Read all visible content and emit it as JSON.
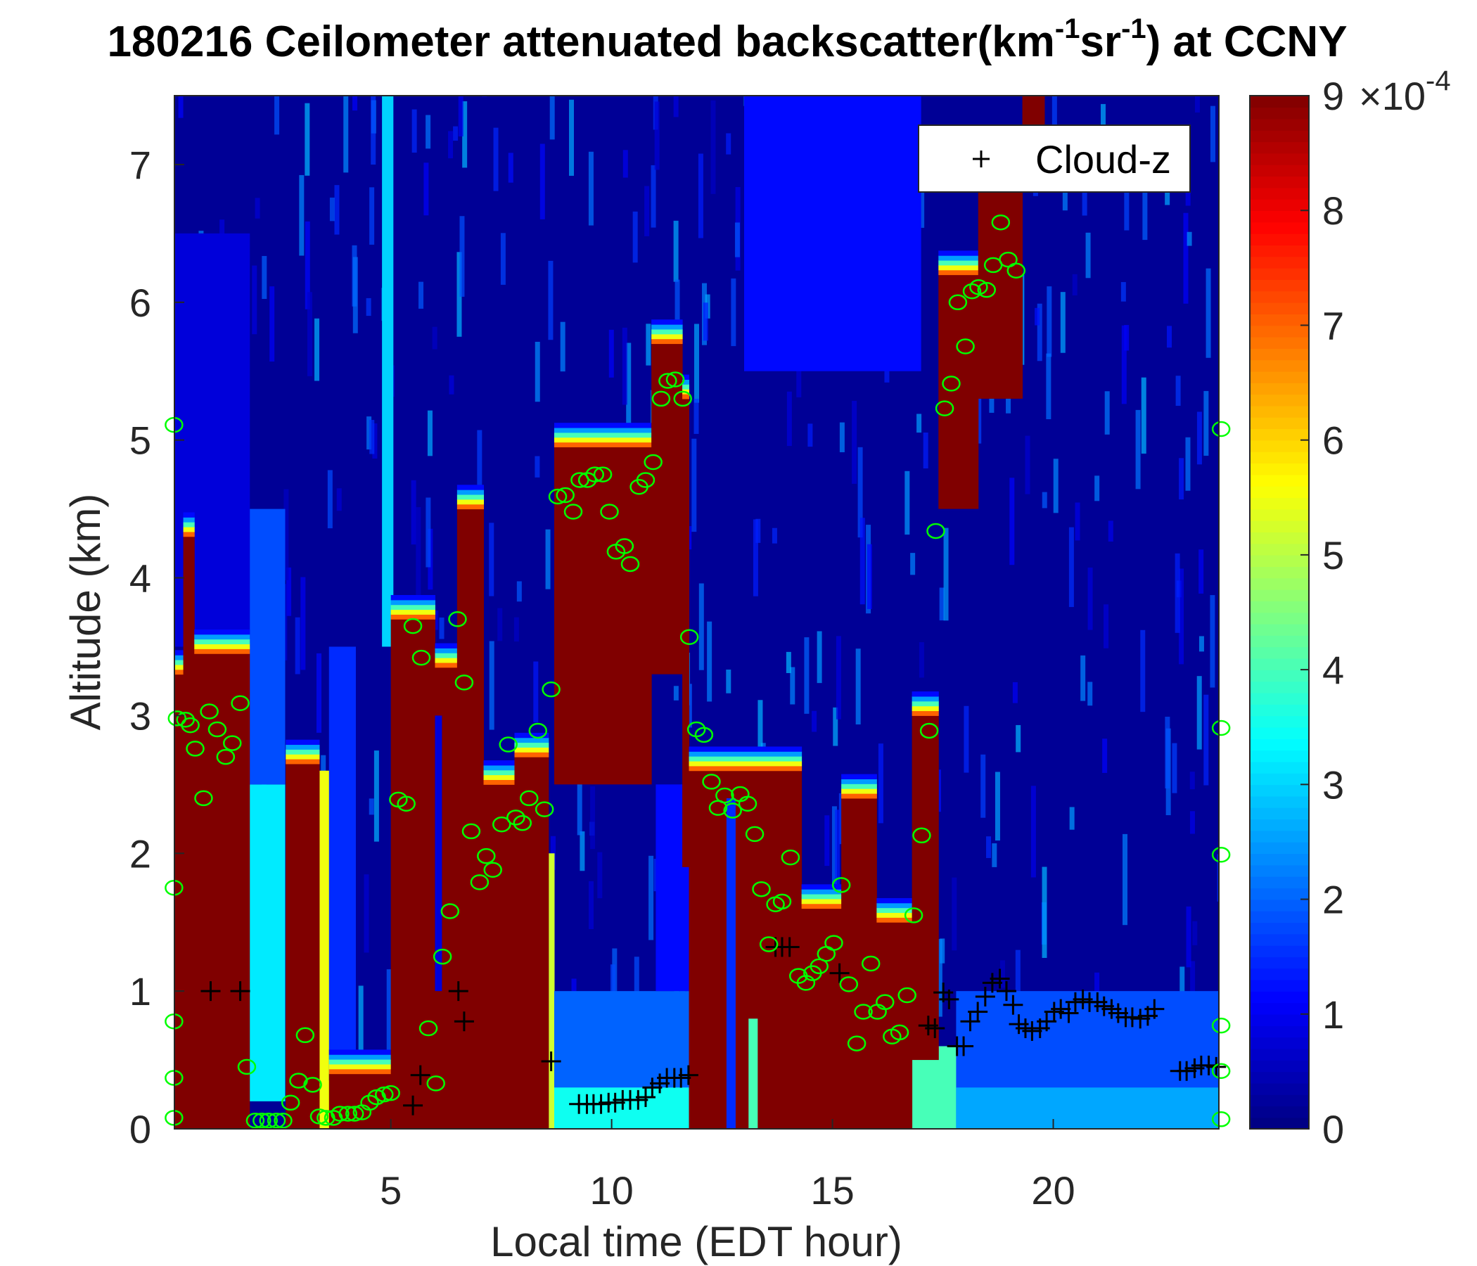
{
  "chart_data": {
    "type": "heatmap",
    "title_parts": {
      "main": "180216 Ceilometer attenuated backscatter(km",
      "sup1": "-1",
      "mid": "sr",
      "sup2": "-1",
      "end": ") at CCNY"
    },
    "xlabel": "Local time (EDT hour)",
    "ylabel": "Altitude (km)",
    "xlim": [
      0.1,
      23.75
    ],
    "ylim": [
      0,
      7.5
    ],
    "xticks": [
      5,
      10,
      15,
      20
    ],
    "yticks": [
      0,
      1,
      2,
      3,
      4,
      5,
      6,
      7
    ],
    "colorbar": {
      "range": [
        0,
        9
      ],
      "ticks": [
        0,
        1,
        2,
        3,
        4,
        5,
        6,
        7,
        8,
        9
      ],
      "multiplier": "×10",
      "multiplier_exp": "-4",
      "colormap": "jet"
    },
    "legend": {
      "placement": "top-right",
      "entries": [
        {
          "marker": "+",
          "label": "Cloud-z",
          "color": "#000000"
        }
      ]
    },
    "background_value": 0.2,
    "field_regions_note_units": "[t_start_hour, t_end_hour, z_base_km, z_top_km, backscatter_x1e-4]",
    "field_regions": [
      [
        1.8,
        2.6,
        0.2,
        2.5,
        3.2
      ],
      [
        1.8,
        2.6,
        2.5,
        4.5,
        1.8
      ],
      [
        3.38,
        3.6,
        0,
        2.6,
        5.5
      ],
      [
        3.6,
        4.2,
        0.35,
        3.5,
        1.5
      ],
      [
        8.57,
        8.7,
        0,
        2.0,
        5.2
      ],
      [
        8.7,
        11.75,
        0,
        1.0,
        2.0
      ],
      [
        8.7,
        11.75,
        0,
        0.3,
        3.5
      ],
      [
        11.0,
        11.75,
        1.0,
        2.5,
        1.2
      ],
      [
        13.0,
        17.0,
        5.5,
        7.5,
        1.2
      ],
      [
        16.8,
        17.8,
        0,
        0.6,
        4.0
      ],
      [
        17.8,
        23.75,
        0,
        1.0,
        1.8
      ],
      [
        17.8,
        23.75,
        0,
        0.3,
        2.6
      ],
      [
        0.1,
        1.8,
        3.5,
        6.5,
        0.8
      ],
      [
        4.8,
        5.05,
        3.5,
        7.5,
        3.0
      ],
      [
        0.1,
        0.3,
        0,
        3.3,
        9
      ],
      [
        0.3,
        0.55,
        0,
        4.3,
        9
      ],
      [
        0.55,
        1.8,
        0,
        3.45,
        9
      ],
      [
        2.62,
        3.38,
        0,
        2.65,
        9
      ],
      [
        3.6,
        5.0,
        0,
        0.4,
        9
      ],
      [
        5.0,
        6.0,
        0,
        3.7,
        9
      ],
      [
        6.0,
        6.5,
        0,
        3.35,
        9
      ],
      [
        6.5,
        7.1,
        0,
        4.5,
        9
      ],
      [
        7.1,
        7.8,
        0,
        2.5,
        9
      ],
      [
        7.8,
        8.57,
        0,
        2.7,
        9
      ],
      [
        8.7,
        10.9,
        2.5,
        4.95,
        9
      ],
      [
        10.9,
        11.6,
        3.3,
        5.7,
        9
      ],
      [
        11.6,
        11.75,
        1.9,
        5.3,
        9
      ],
      [
        11.75,
        14.3,
        0,
        2.6,
        9
      ],
      [
        14.3,
        15.2,
        0,
        1.6,
        9
      ],
      [
        15.2,
        16.0,
        0,
        2.4,
        9
      ],
      [
        16.0,
        16.8,
        0,
        1.5,
        9
      ],
      [
        16.8,
        17.4,
        0.5,
        3.0,
        9
      ],
      [
        17.4,
        18.3,
        4.5,
        6.2,
        9
      ],
      [
        18.3,
        19.3,
        5.3,
        6.9,
        9
      ],
      [
        19.3,
        19.8,
        6.8,
        7.5,
        9
      ],
      [
        6.0,
        6.15,
        1.0,
        3.0,
        0.8
      ],
      [
        12.6,
        12.8,
        0,
        2.4,
        1.5
      ],
      [
        13.1,
        13.3,
        0,
        0.8,
        4.0
      ]
    ],
    "series": [
      {
        "name": "Cloud-z",
        "marker": "+",
        "color": "#000000",
        "points": [
          [
            0.92,
            1.0
          ],
          [
            1.59,
            1.0
          ],
          [
            5.5,
            0.17
          ],
          [
            5.67,
            0.39
          ],
          [
            6.53,
            1.0
          ],
          [
            6.66,
            0.78
          ],
          [
            8.63,
            0.49
          ],
          [
            9.26,
            0.18
          ],
          [
            9.44,
            0.18
          ],
          [
            9.59,
            0.18
          ],
          [
            9.76,
            0.18
          ],
          [
            9.93,
            0.19
          ],
          [
            10.08,
            0.19
          ],
          [
            10.25,
            0.21
          ],
          [
            10.42,
            0.21
          ],
          [
            10.6,
            0.21
          ],
          [
            10.77,
            0.23
          ],
          [
            10.92,
            0.3
          ],
          [
            11.09,
            0.33
          ],
          [
            11.25,
            0.37
          ],
          [
            11.42,
            0.37
          ],
          [
            11.57,
            0.37
          ],
          [
            11.74,
            0.39
          ],
          [
            13.71,
            1.32
          ],
          [
            13.86,
            1.32
          ],
          [
            14.03,
            1.32
          ],
          [
            15.16,
            1.13
          ],
          [
            17.17,
            0.75
          ],
          [
            17.32,
            0.73
          ],
          [
            17.51,
            0.99
          ],
          [
            17.64,
            0.94
          ],
          [
            17.82,
            0.6
          ],
          [
            17.97,
            0.6
          ],
          [
            18.12,
            0.78
          ],
          [
            18.29,
            0.85
          ],
          [
            18.46,
            0.96
          ],
          [
            18.62,
            1.06
          ],
          [
            18.79,
            1.09
          ],
          [
            18.94,
            1.0
          ],
          [
            19.09,
            0.9
          ],
          [
            19.22,
            0.76
          ],
          [
            19.37,
            0.73
          ],
          [
            19.52,
            0.71
          ],
          [
            19.7,
            0.73
          ],
          [
            19.85,
            0.78
          ],
          [
            20.02,
            0.85
          ],
          [
            20.17,
            0.87
          ],
          [
            20.35,
            0.84
          ],
          [
            20.5,
            0.92
          ],
          [
            20.67,
            0.94
          ],
          [
            20.82,
            0.92
          ],
          [
            21.0,
            0.92
          ],
          [
            21.15,
            0.89
          ],
          [
            21.32,
            0.87
          ],
          [
            21.47,
            0.84
          ],
          [
            21.64,
            0.81
          ],
          [
            21.79,
            0.81
          ],
          [
            21.97,
            0.8
          ],
          [
            22.14,
            0.82
          ],
          [
            22.29,
            0.87
          ],
          [
            22.87,
            0.42
          ],
          [
            23.02,
            0.42
          ],
          [
            23.2,
            0.44
          ],
          [
            23.35,
            0.46
          ],
          [
            23.52,
            0.46
          ],
          [
            23.69,
            0.45
          ]
        ]
      },
      {
        "marker": "o",
        "color": "#00ff00",
        "points": [
          [
            0.09,
            5.11
          ],
          [
            0.09,
            1.75
          ],
          [
            0.09,
            0.78
          ],
          [
            0.09,
            0.37
          ],
          [
            0.09,
            0.08
          ],
          [
            0.16,
            2.98
          ],
          [
            0.35,
            2.97
          ],
          [
            0.46,
            2.93
          ],
          [
            0.57,
            2.76
          ],
          [
            0.76,
            2.4
          ],
          [
            0.89,
            3.03
          ],
          [
            1.07,
            2.9
          ],
          [
            1.26,
            2.7
          ],
          [
            1.41,
            2.8
          ],
          [
            1.59,
            3.09
          ],
          [
            1.74,
            0.45
          ],
          [
            1.93,
            0.06
          ],
          [
            2.08,
            0.06
          ],
          [
            2.23,
            0.06
          ],
          [
            2.41,
            0.06
          ],
          [
            2.56,
            0.06
          ],
          [
            2.73,
            0.19
          ],
          [
            2.91,
            0.35
          ],
          [
            3.06,
            0.68
          ],
          [
            3.23,
            0.32
          ],
          [
            3.38,
            0.09
          ],
          [
            3.53,
            0.08
          ],
          [
            3.7,
            0.08
          ],
          [
            3.85,
            0.11
          ],
          [
            4.03,
            0.11
          ],
          [
            4.18,
            0.11
          ],
          [
            4.35,
            0.12
          ],
          [
            4.52,
            0.19
          ],
          [
            4.68,
            0.23
          ],
          [
            4.85,
            0.25
          ],
          [
            5.0,
            0.26
          ],
          [
            5.17,
            2.39
          ],
          [
            5.35,
            2.36
          ],
          [
            5.5,
            3.65
          ],
          [
            5.69,
            3.42
          ],
          [
            5.85,
            0.73
          ],
          [
            6.02,
            0.33
          ],
          [
            6.17,
            1.25
          ],
          [
            6.34,
            1.58
          ],
          [
            6.51,
            3.7
          ],
          [
            6.66,
            3.24
          ],
          [
            6.82,
            2.16
          ],
          [
            7.01,
            1.79
          ],
          [
            7.16,
            1.98
          ],
          [
            7.31,
            1.88
          ],
          [
            7.51,
            2.21
          ],
          [
            7.66,
            2.79
          ],
          [
            7.83,
            2.26
          ],
          [
            7.98,
            2.22
          ],
          [
            8.13,
            2.4
          ],
          [
            8.33,
            2.89
          ],
          [
            8.48,
            2.32
          ],
          [
            8.63,
            3.19
          ],
          [
            8.78,
            4.59
          ],
          [
            8.95,
            4.6
          ],
          [
            9.13,
            4.48
          ],
          [
            9.28,
            4.71
          ],
          [
            9.45,
            4.71
          ],
          [
            9.62,
            4.75
          ],
          [
            9.8,
            4.75
          ],
          [
            9.95,
            4.48
          ],
          [
            10.1,
            4.19
          ],
          [
            10.29,
            4.23
          ],
          [
            10.42,
            4.1
          ],
          [
            10.62,
            4.66
          ],
          [
            10.77,
            4.71
          ],
          [
            10.94,
            4.84
          ],
          [
            11.12,
            5.3
          ],
          [
            11.27,
            5.43
          ],
          [
            11.44,
            5.44
          ],
          [
            11.61,
            5.3
          ],
          [
            11.76,
            3.57
          ],
          [
            11.92,
            2.9
          ],
          [
            12.09,
            2.86
          ],
          [
            12.26,
            2.52
          ],
          [
            12.41,
            2.33
          ],
          [
            12.56,
            2.42
          ],
          [
            12.74,
            2.31
          ],
          [
            12.91,
            2.43
          ],
          [
            13.08,
            2.36
          ],
          [
            13.24,
            2.14
          ],
          [
            13.39,
            1.74
          ],
          [
            13.56,
            1.34
          ],
          [
            13.71,
            1.63
          ],
          [
            13.86,
            1.65
          ],
          [
            14.05,
            1.97
          ],
          [
            14.23,
            1.11
          ],
          [
            14.4,
            1.06
          ],
          [
            14.55,
            1.13
          ],
          [
            14.7,
            1.18
          ],
          [
            14.86,
            1.27
          ],
          [
            15.03,
            1.35
          ],
          [
            15.2,
            1.77
          ],
          [
            15.37,
            1.05
          ],
          [
            15.55,
            0.62
          ],
          [
            15.7,
            0.85
          ],
          [
            15.87,
            1.2
          ],
          [
            16.02,
            0.85
          ],
          [
            16.19,
            0.92
          ],
          [
            16.35,
            0.67
          ],
          [
            16.52,
            0.7
          ],
          [
            16.69,
            0.97
          ],
          [
            16.84,
            1.55
          ],
          [
            17.02,
            2.13
          ],
          [
            17.19,
            2.89
          ],
          [
            17.34,
            4.34
          ],
          [
            17.54,
            5.23
          ],
          [
            17.69,
            5.41
          ],
          [
            17.84,
            6.0
          ],
          [
            18.01,
            5.68
          ],
          [
            18.16,
            6.08
          ],
          [
            18.31,
            6.11
          ],
          [
            18.49,
            6.09
          ],
          [
            18.64,
            6.27
          ],
          [
            18.81,
            6.58
          ],
          [
            18.98,
            6.31
          ],
          [
            19.16,
            6.23
          ],
          [
            23.8,
            5.08
          ],
          [
            23.8,
            2.91
          ],
          [
            23.8,
            1.99
          ],
          [
            23.8,
            0.75
          ],
          [
            23.8,
            0.42
          ],
          [
            23.8,
            0.07
          ]
        ]
      }
    ]
  }
}
